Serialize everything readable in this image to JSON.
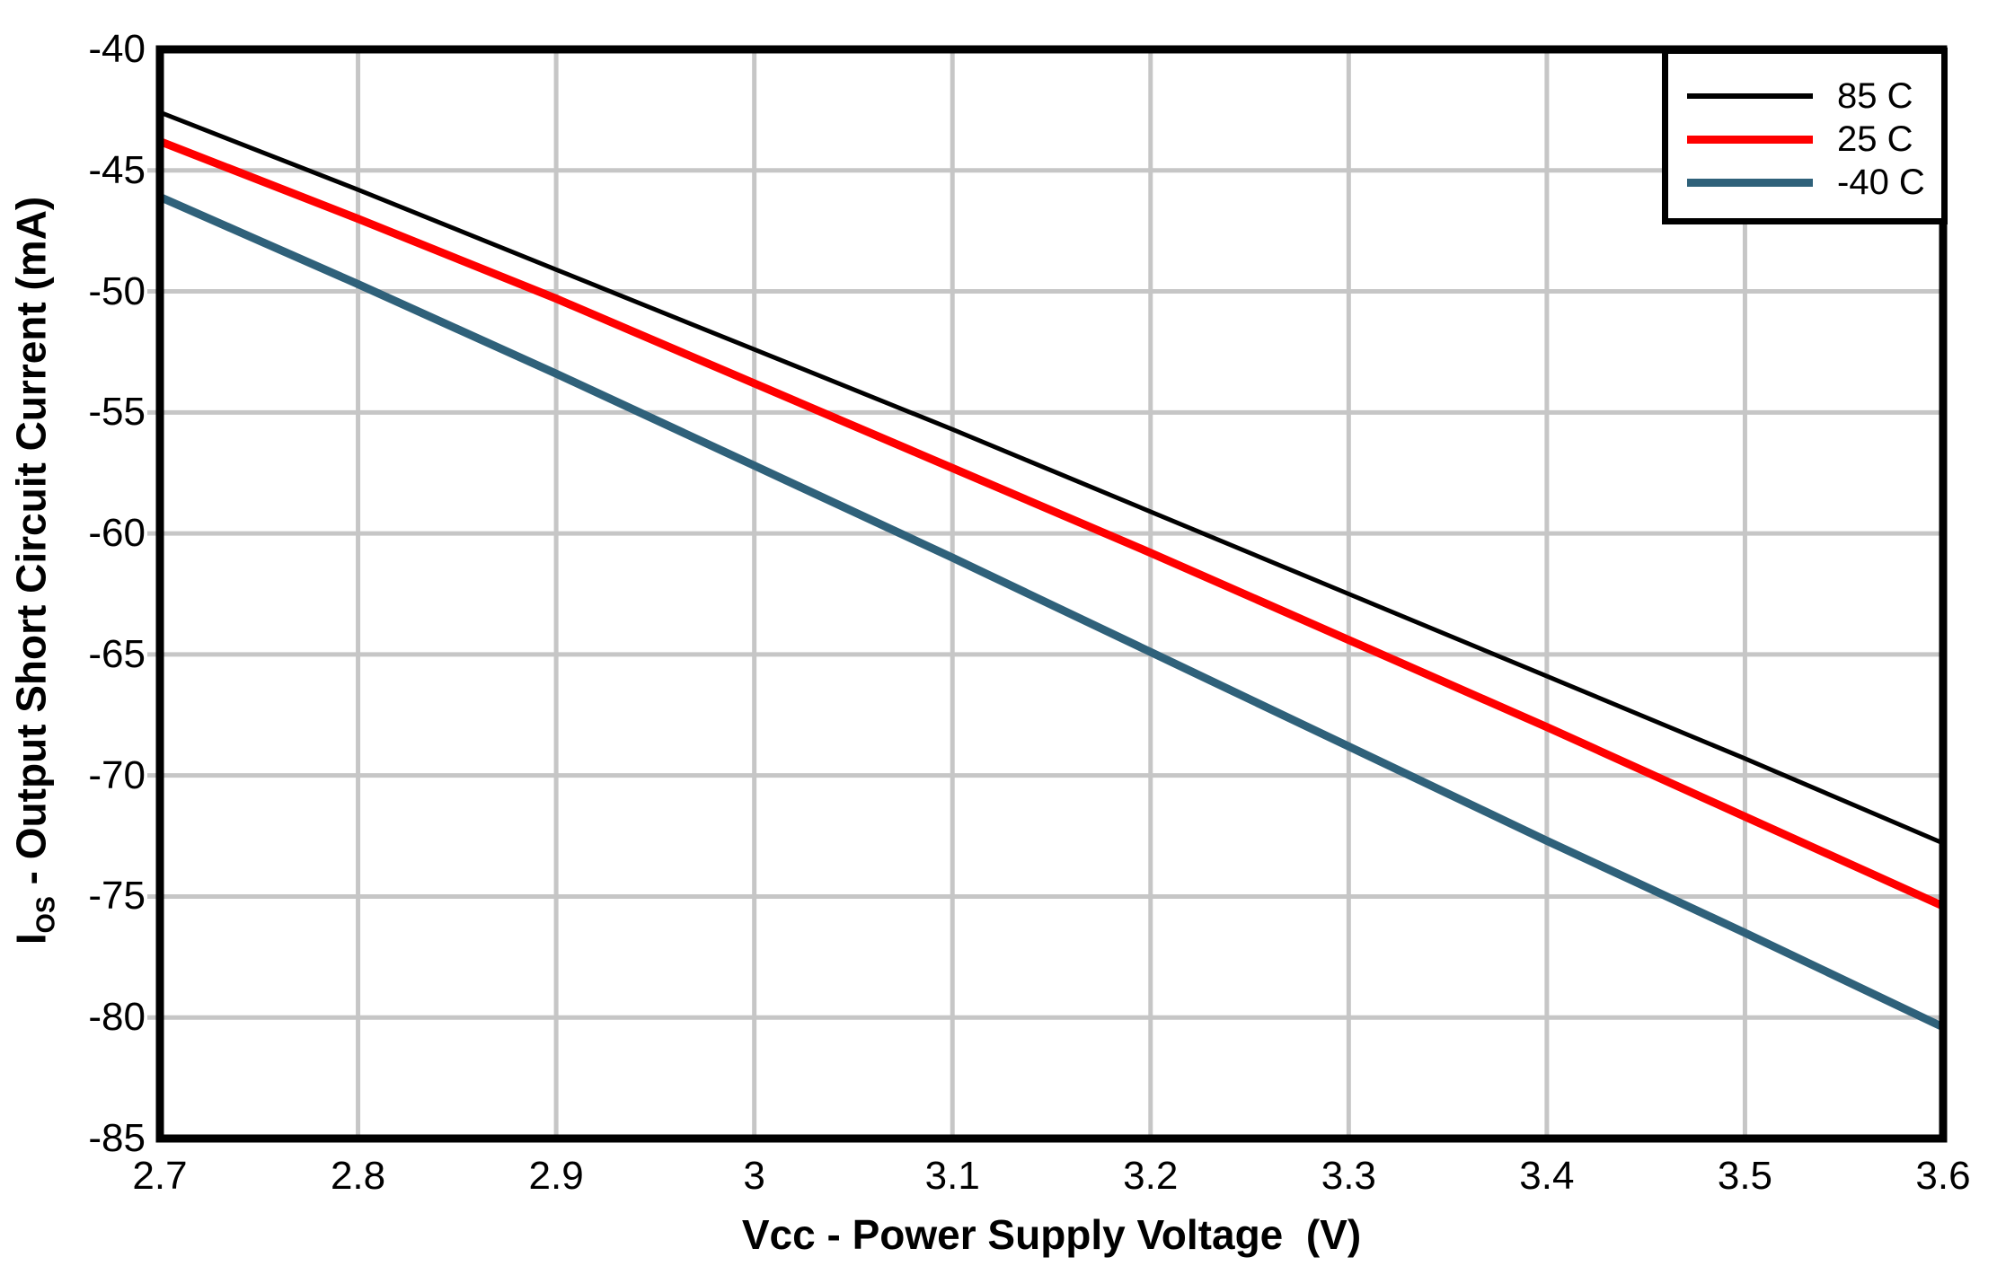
{
  "chart_data": {
    "type": "line",
    "title": "",
    "xlabel": "Vcc - Power Supply Voltage  (V)",
    "ylabel": "IOS - Output Short Circuit Current (mA)",
    "ylabel_parts": {
      "prefix": "I",
      "sub": "OS",
      "rest": " - Output Short Circuit Current (mA)"
    },
    "xlim": [
      2.7,
      3.6
    ],
    "ylim": [
      -85,
      -40
    ],
    "grid": true,
    "legend_position": "top-right",
    "x_tick_values": [
      2.7,
      2.8,
      2.9,
      3.0,
      3.1,
      3.2,
      3.3,
      3.4,
      3.5,
      3.6
    ],
    "x_tick_labels": [
      "2.7",
      "2.8",
      "2.9",
      "3",
      "3.1",
      "3.2",
      "3.3",
      "3.4",
      "3.5",
      "3.6"
    ],
    "y_tick_values": [
      -40,
      -45,
      -50,
      -55,
      -60,
      -65,
      -70,
      -75,
      -80,
      -85
    ],
    "y_tick_labels": [
      "-40",
      "-45",
      "-50",
      "-55",
      "-60",
      "-65",
      "-70",
      "-75",
      "-80",
      "-85"
    ],
    "x": [
      2.7,
      2.8,
      2.9,
      3.0,
      3.1,
      3.2,
      3.3,
      3.4,
      3.5,
      3.6
    ],
    "series": [
      {
        "name": "85 C",
        "color": "#000000",
        "stroke_width": 5,
        "values": [
          -42.6,
          -45.8,
          -49.1,
          -52.4,
          -55.7,
          -59.1,
          -62.5,
          -65.9,
          -69.3,
          -72.8
        ]
      },
      {
        "name": "25 C",
        "color": "#FF0000",
        "stroke_width": 9,
        "values": [
          -43.8,
          -47.0,
          -50.3,
          -53.8,
          -57.3,
          -60.8,
          -64.4,
          -68.0,
          -71.7,
          -75.4
        ]
      },
      {
        "name": "-40 C",
        "color": "#2F617A",
        "stroke_width": 9,
        "values": [
          -46.1,
          -49.7,
          -53.4,
          -57.2,
          -61.0,
          -64.9,
          -68.8,
          -72.7,
          -76.5,
          -80.4
        ]
      }
    ],
    "colors": {
      "grid": "#C6C6C6",
      "axis": "#000000",
      "background": "#FFFFFF"
    }
  }
}
